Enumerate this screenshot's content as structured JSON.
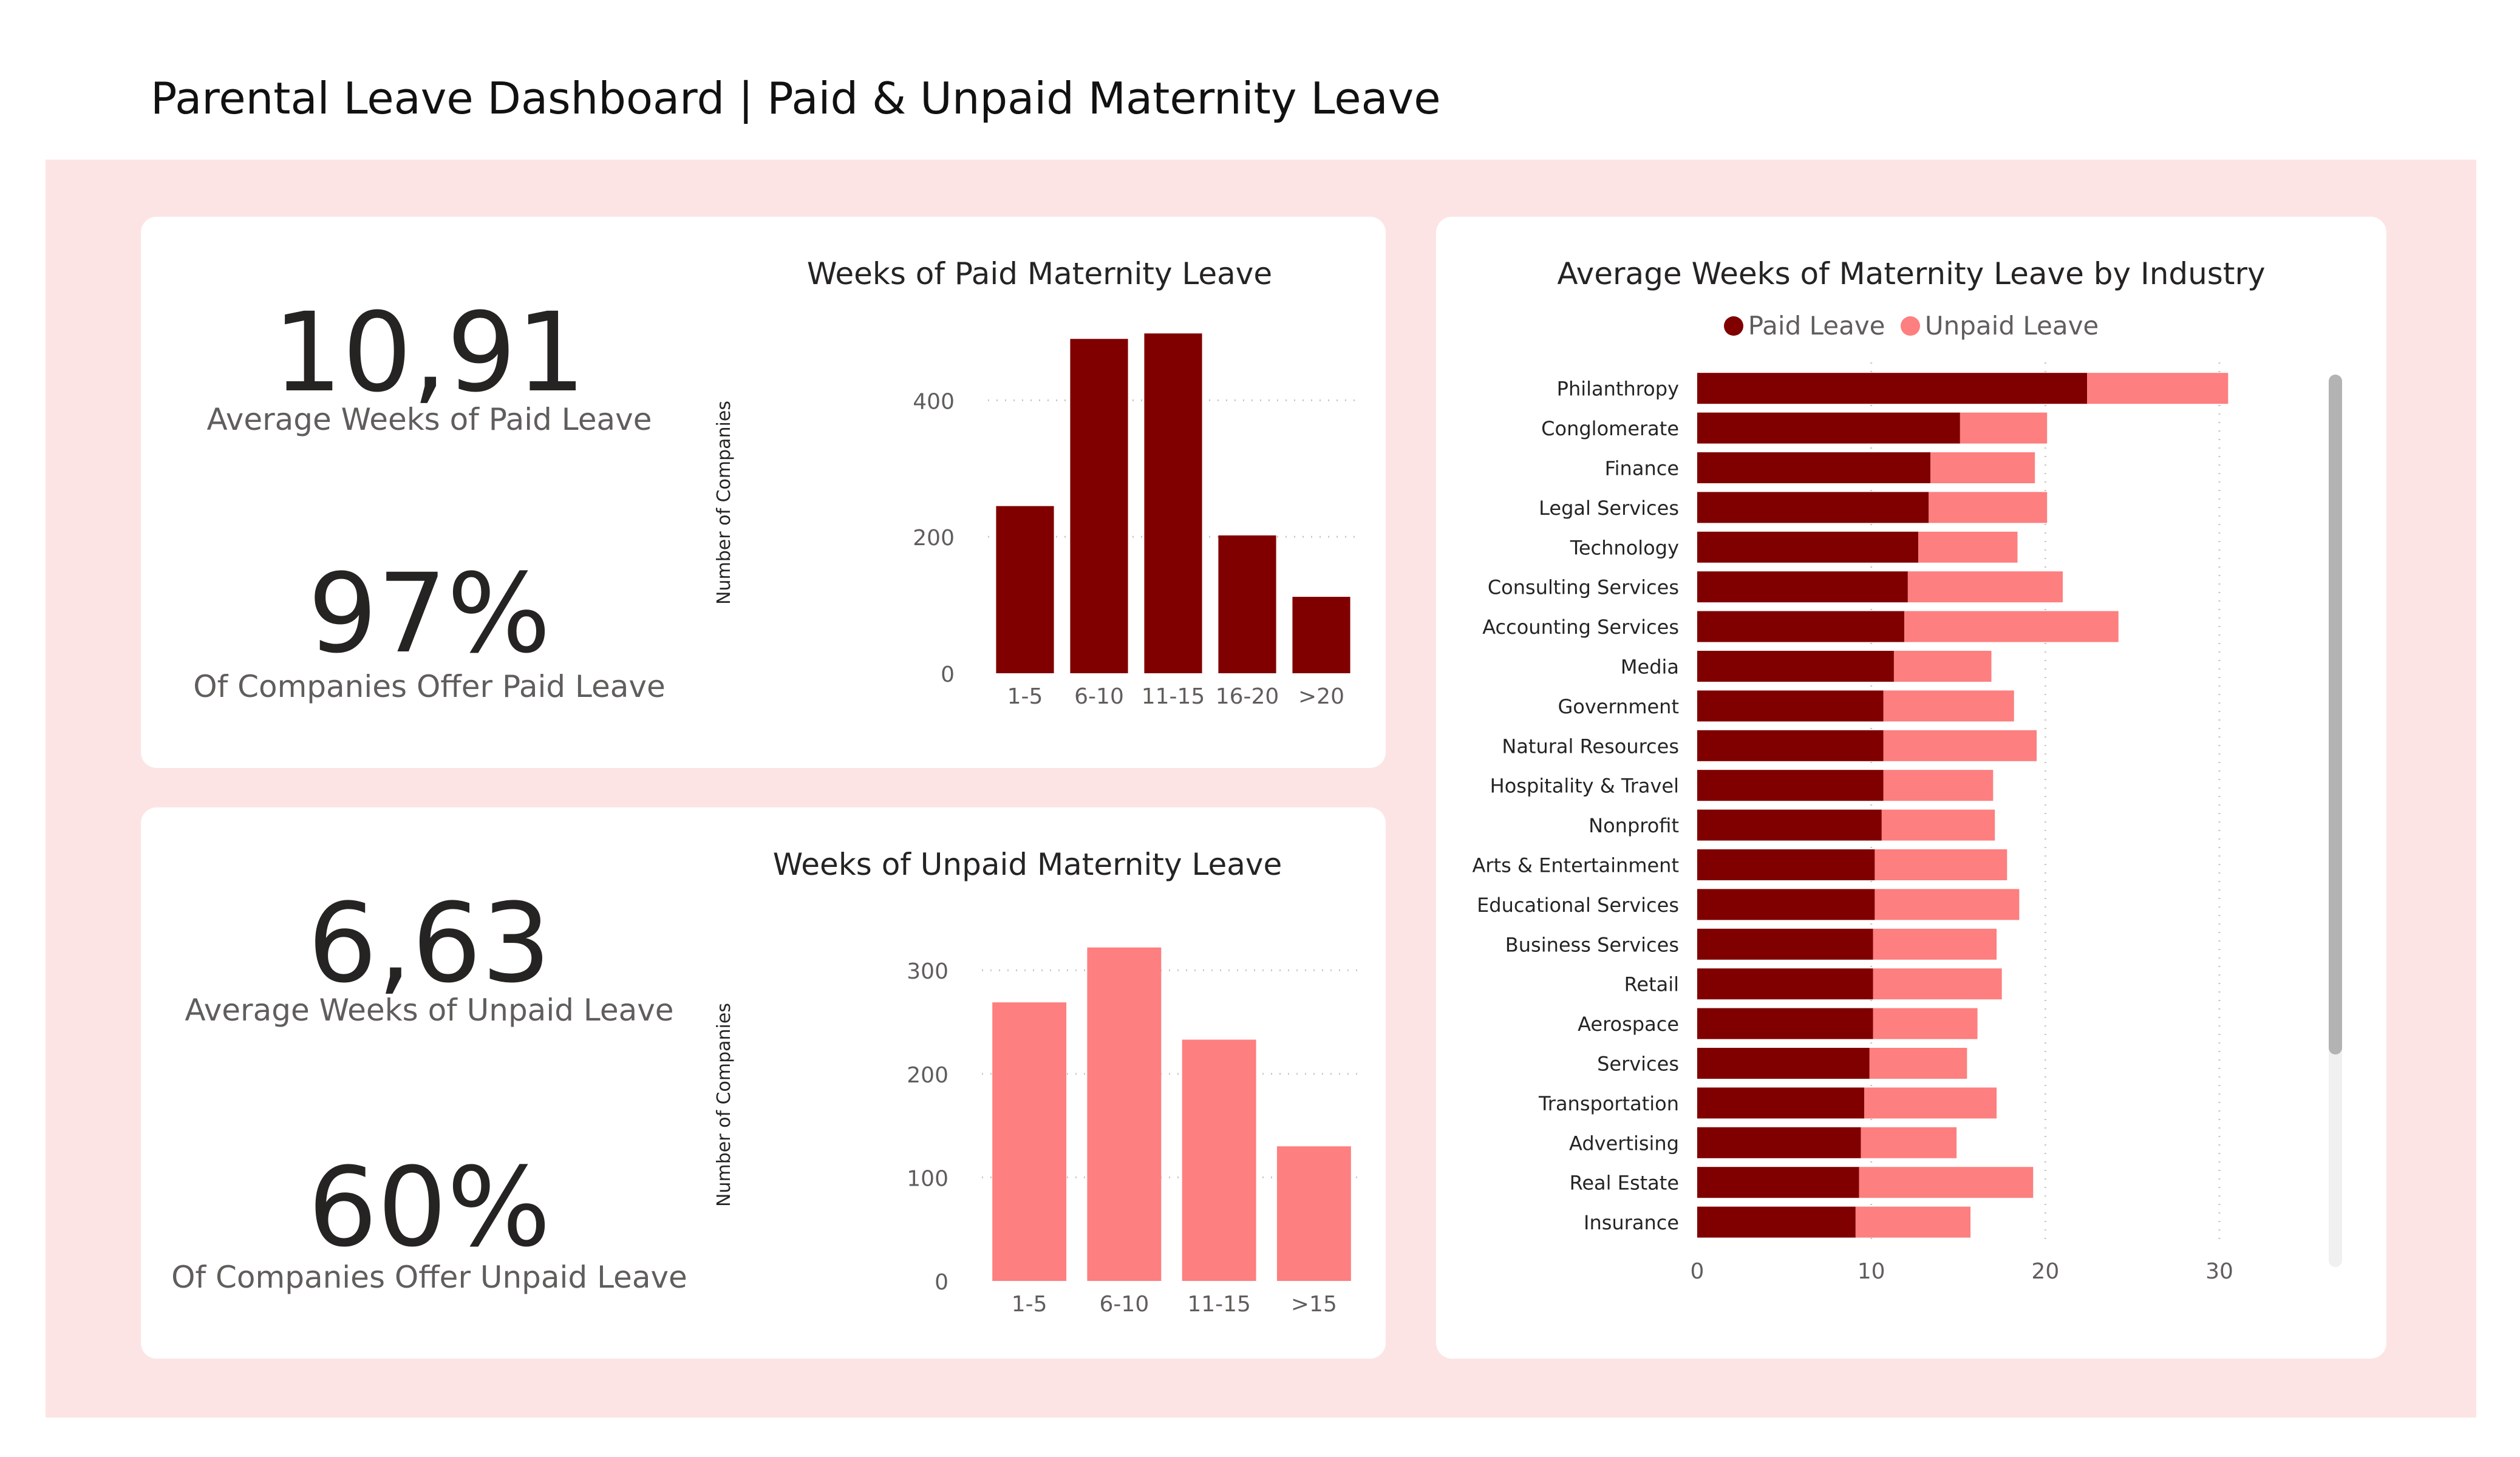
{
  "page": {
    "title": "Parental Leave Dashboard | Paid & Unpaid Maternity Leave"
  },
  "kpis": {
    "paid_avg": {
      "value": "10,91",
      "label": "Average Weeks of Paid Leave"
    },
    "paid_pct": {
      "value": "97%",
      "label": "Of Companies Offer Paid Leave"
    },
    "unpaid_avg": {
      "value": "6,63",
      "label": "Average Weeks of Unpaid Leave"
    },
    "unpaid_pct": {
      "value": "60%",
      "label": "Of Companies Offer Unpaid Leave"
    }
  },
  "colors": {
    "paid": "#800000",
    "unpaid": "#fd7f7f",
    "background": "#fde4e4",
    "card": "#ffffff"
  },
  "chart_data": [
    {
      "type": "bar",
      "title": "Weeks of Paid Maternity Leave",
      "categories": [
        "1-5",
        "6-10",
        "11-15",
        "16-20",
        ">20"
      ],
      "values": [
        245,
        490,
        498,
        202,
        112
      ],
      "ylabel": "Number of Companies",
      "ylim": [
        0,
        500
      ],
      "yticks": [
        0,
        200,
        400
      ],
      "grid": true,
      "color": "#800000"
    },
    {
      "type": "bar",
      "title": "Weeks of Unpaid Maternity Leave",
      "categories": [
        "1-5",
        "6-10",
        "11-15",
        ">15"
      ],
      "values": [
        269,
        322,
        233,
        130
      ],
      "ylabel": "Number of Companies",
      "ylim": [
        0,
        340
      ],
      "yticks": [
        0,
        100,
        200,
        300
      ],
      "grid": true,
      "color": "#fd7f7f"
    },
    {
      "type": "bar",
      "orientation": "horizontal",
      "stacked": true,
      "title": "Average Weeks of Maternity Leave by Industry",
      "categories": [
        "Philanthropy",
        "Conglomerate",
        "Finance",
        "Legal Services",
        "Technology",
        "Consulting Services",
        "Accounting Services",
        "Media",
        "Government",
        "Natural Resources",
        "Hospitality & Travel",
        "Nonprofit",
        "Arts & Entertainment",
        "Educational Services",
        "Business Services",
        "Retail",
        "Aerospace",
        "Services",
        "Transportation",
        "Advertising",
        "Real Estate",
        "Insurance"
      ],
      "series": [
        {
          "name": "Paid Leave",
          "color": "#800000",
          "values": [
            22.4,
            15.1,
            13.4,
            13.3,
            12.7,
            12.1,
            11.9,
            11.3,
            10.7,
            10.7,
            10.7,
            10.6,
            10.2,
            10.2,
            10.1,
            10.1,
            10.1,
            9.9,
            9.6,
            9.4,
            9.3,
            9.1
          ]
        },
        {
          "name": "Unpaid Leave",
          "color": "#fd7f7f",
          "values": [
            8.1,
            5.0,
            6.0,
            6.8,
            5.7,
            8.9,
            12.3,
            5.6,
            7.5,
            8.8,
            6.3,
            6.5,
            7.6,
            8.3,
            7.1,
            7.4,
            6.0,
            5.6,
            7.6,
            5.5,
            10.0,
            6.6
          ]
        }
      ],
      "xlim": [
        0,
        30
      ],
      "xticks": [
        0,
        10,
        20,
        30
      ],
      "legend": "top-center",
      "grid": true
    }
  ]
}
